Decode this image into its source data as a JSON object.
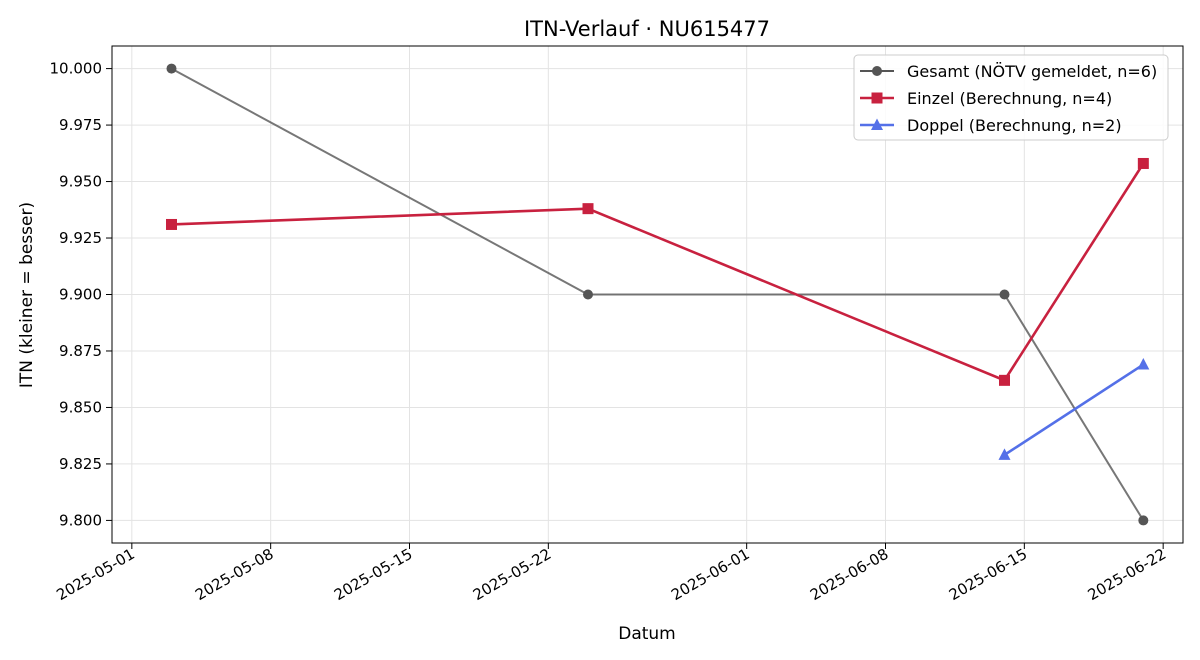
{
  "chart_data": {
    "type": "line",
    "title": "ITN-Verlauf · NU615477",
    "xlabel": "Datum",
    "ylabel": "ITN  (kleiner = besser)",
    "xlim": [
      "2025-04-30",
      "2025-06-23"
    ],
    "ylim": [
      9.79,
      10.01
    ],
    "x_ticks": [
      "2025-05-01",
      "2025-05-08",
      "2025-05-15",
      "2025-05-22",
      "2025-06-01",
      "2025-06-08",
      "2025-06-15",
      "2025-06-22"
    ],
    "y_ticks": [
      "9.800",
      "9.825",
      "9.850",
      "9.875",
      "9.900",
      "9.925",
      "9.950",
      "9.975",
      "10.000"
    ],
    "grid": true,
    "legend_position": "top-right",
    "series": [
      {
        "name": "Gesamt (NÖTV gemeldet, n=6)",
        "color": "#555555",
        "marker": "circle",
        "x": [
          "2025-05-03",
          "2025-05-24",
          "2025-06-14",
          "2025-06-21"
        ],
        "y": [
          10.0,
          9.9,
          9.9,
          9.8
        ]
      },
      {
        "name": "Einzel (Berechnung, n=4)",
        "color": "#c8213f",
        "marker": "square",
        "x": [
          "2025-05-03",
          "2025-05-24",
          "2025-06-14",
          "2025-06-21"
        ],
        "y": [
          9.931,
          9.938,
          9.862,
          9.958
        ]
      },
      {
        "name": "Doppel (Berechnung, n=2)",
        "color": "#5470e8",
        "marker": "triangle",
        "x": [
          "2025-06-14",
          "2025-06-21"
        ],
        "y": [
          9.829,
          9.869
        ]
      }
    ]
  }
}
